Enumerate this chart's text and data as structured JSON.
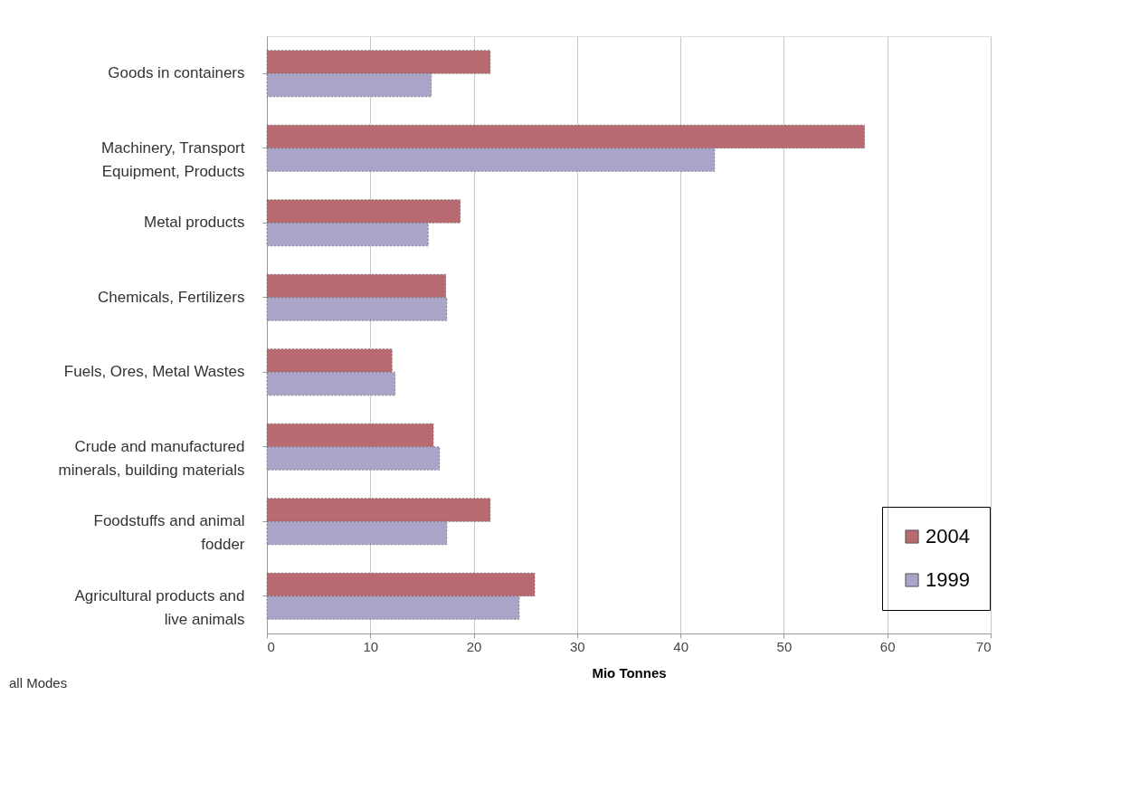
{
  "chart_data": {
    "type": "bar",
    "orientation": "horizontal",
    "categories": [
      "Goods in containers",
      "Machinery, Transport\nEquipment, Products",
      "Metal products",
      "Chemicals, Fertilizers",
      "Fuels, Ores, Metal Wastes",
      "Crude and manufactured\nminerals, building materials",
      "Foodstuffs and animal\nfodder",
      "Agricultural products and\nlive animals"
    ],
    "series": [
      {
        "name": "2004",
        "color": "#b86a70",
        "values": [
          21.6,
          57.8,
          18.7,
          17.3,
          12.1,
          16.1,
          21.6,
          25.9
        ]
      },
      {
        "name": "1999",
        "color": "#aaa4c8",
        "values": [
          15.9,
          43.3,
          15.6,
          17.4,
          12.4,
          16.7,
          17.4,
          24.4
        ]
      }
    ],
    "xlim": [
      0,
      70
    ],
    "xticks": [
      0,
      10,
      20,
      30,
      40,
      50,
      60,
      70
    ],
    "xlabel": "Mio Tonnes",
    "grid": "x",
    "legend": "bottom right",
    "annotations": [
      "all Modes"
    ]
  }
}
